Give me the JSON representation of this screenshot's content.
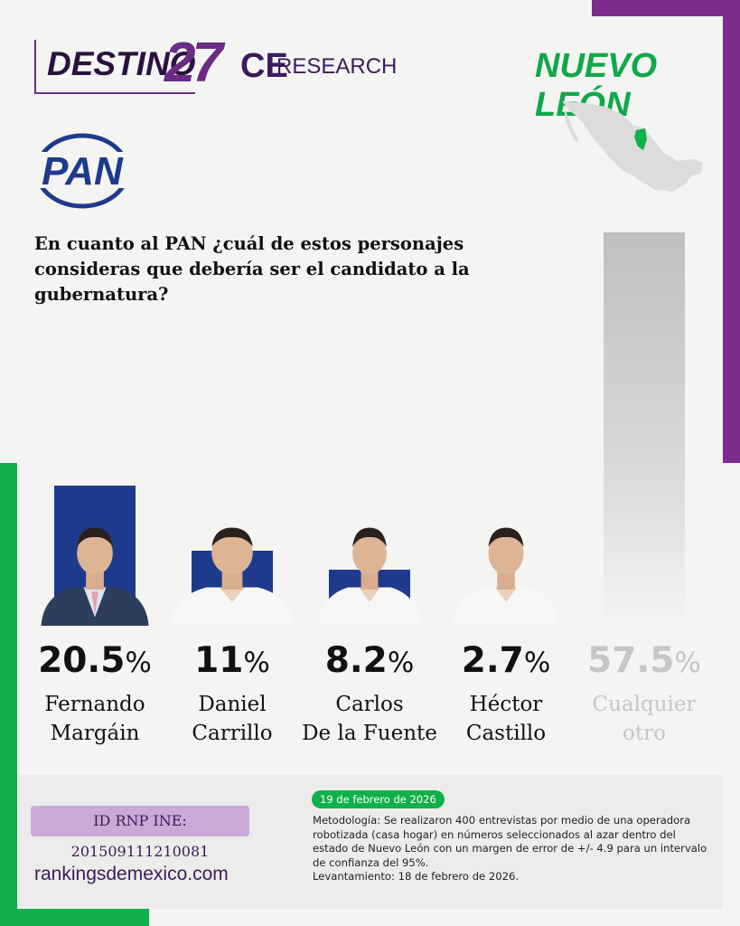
{
  "header": {
    "brand_destino": "DESTINO",
    "brand_27": "27",
    "brand_ce": "CE",
    "brand_research": "RESEARCH",
    "state": "NUEVO LEÓN",
    "party_logo_text": "PAN"
  },
  "question": "En cuanto al PAN ¿cuál de estos personajes consideras que debería ser el candidato a la gubernatura?",
  "chart_data": {
    "type": "bar",
    "title": "",
    "xlabel": "",
    "ylabel": "",
    "unit": "%",
    "categories": [
      "Fernando Margáin",
      "Daniel Carrillo",
      "Carlos De la Fuente",
      "Héctor Castillo",
      "Cualquier otro"
    ],
    "values": [
      20.5,
      11,
      8.2,
      2.7,
      57.5
    ],
    "value_labels": [
      "20.5",
      "11",
      "8.2",
      "2.7",
      "57.5"
    ],
    "name_lines": [
      [
        "Fernando",
        "Margáin"
      ],
      [
        "Daniel",
        "Carrillo"
      ],
      [
        "Carlos",
        "De la Fuente"
      ],
      [
        "Héctor",
        "Castillo"
      ],
      [
        "Cualquier",
        "otro"
      ]
    ],
    "ylim": [
      0,
      57.5
    ],
    "colors": {
      "candidate_bar": "#1e3a8c",
      "other_bar": "#c4c4c4"
    }
  },
  "footer": {
    "rnp": "ID RNP INE: 201509111210081",
    "site": "rankingsdemexico.com",
    "date": "19 de febrero de 2026",
    "methodology": [
      "Metodología: Se realizaron 400 entrevistas por medio de una operadora",
      "robotizada (casa hogar) en números seleccionados al azar dentro del",
      "estado de Nuevo León con un margen de error de +/- 4.9 para un intervalo",
      "de confianza del 95%.",
      "Levantamiento: 18 de febrero de 2026."
    ]
  },
  "colors": {
    "purple": "#7b2d8e",
    "green": "#10b04a",
    "navy": "#1e3a8c"
  }
}
